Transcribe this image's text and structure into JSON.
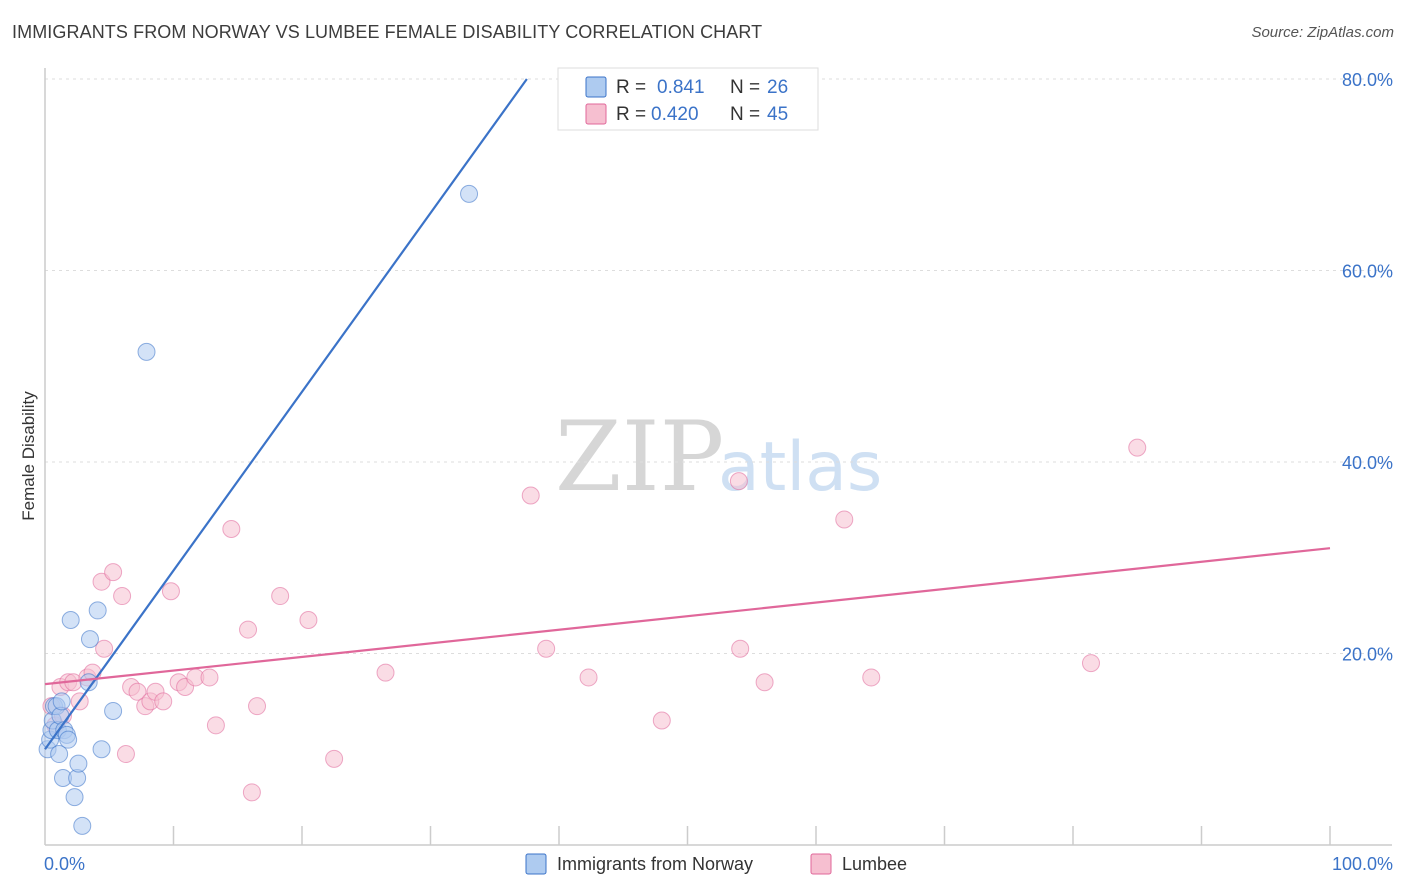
{
  "header": {
    "title": "IMMIGRANTS FROM NORWAY VS LUMBEE FEMALE DISABILITY CORRELATION CHART",
    "source": "Source: ZipAtlas.com"
  },
  "watermark": {
    "zip": "ZIP",
    "atlas": "atlas"
  },
  "colors": {
    "blue": "#3b73c8",
    "blue_fill": "#aecbf0",
    "pink": "#e0679a",
    "pink_fill": "#f6bfd0",
    "grid": "#dddddd",
    "axis": "#cccccc"
  },
  "legend": {
    "r_label": "R =",
    "n_label": "N =",
    "rows": [
      {
        "series": "Immigrants from Norway",
        "r": "0.841",
        "n": "26"
      },
      {
        "series": "Lumbee",
        "r": "0.420",
        "n": "45"
      }
    ]
  },
  "chart_data": {
    "type": "scatter",
    "title": "IMMIGRANTS FROM NORWAY VS LUMBEE FEMALE DISABILITY CORRELATION CHART",
    "xlabel": "",
    "ylabel": "Female Disability",
    "xlim": [
      0,
      100
    ],
    "ylim": [
      0,
      80
    ],
    "x_tick_labels": [
      "0.0%",
      "100.0%"
    ],
    "y_ticks": [
      20,
      40,
      60,
      80
    ],
    "y_tick_labels": [
      "20.0%",
      "40.0%",
      "60.0%",
      "80.0%"
    ],
    "series": [
      {
        "name": "Immigrants from Norway",
        "color": "#3b73c8",
        "trend": {
          "x": [
            0.0,
            37.5
          ],
          "y": [
            10.0,
            80.0
          ]
        },
        "points": [
          {
            "x": 0.2,
            "y": 10.0
          },
          {
            "x": 0.4,
            "y": 11.0
          },
          {
            "x": 0.5,
            "y": 12.0
          },
          {
            "x": 0.6,
            "y": 13.0
          },
          {
            "x": 0.7,
            "y": 14.5
          },
          {
            "x": 0.9,
            "y": 14.5
          },
          {
            "x": 1.0,
            "y": 12.0
          },
          {
            "x": 1.1,
            "y": 9.5
          },
          {
            "x": 1.2,
            "y": 13.5
          },
          {
            "x": 1.3,
            "y": 15.0
          },
          {
            "x": 1.4,
            "y": 7.0
          },
          {
            "x": 1.5,
            "y": 12.0
          },
          {
            "x": 1.7,
            "y": 11.5
          },
          {
            "x": 1.8,
            "y": 11.0
          },
          {
            "x": 2.0,
            "y": 23.5
          },
          {
            "x": 2.3,
            "y": 5.0
          },
          {
            "x": 2.5,
            "y": 7.0
          },
          {
            "x": 2.6,
            "y": 8.5
          },
          {
            "x": 2.9,
            "y": 2.0
          },
          {
            "x": 3.4,
            "y": 17.0
          },
          {
            "x": 3.5,
            "y": 21.5
          },
          {
            "x": 4.1,
            "y": 24.5
          },
          {
            "x": 4.4,
            "y": 10.0
          },
          {
            "x": 5.3,
            "y": 14.0
          },
          {
            "x": 7.9,
            "y": 51.5
          },
          {
            "x": 33.0,
            "y": 68.0
          }
        ]
      },
      {
        "name": "Lumbee",
        "color": "#e0679a",
        "trend": {
          "x": [
            0.0,
            100.0
          ],
          "y": [
            16.8,
            31.0
          ]
        },
        "points": [
          {
            "x": 0.5,
            "y": 14.5
          },
          {
            "x": 0.8,
            "y": 12.5
          },
          {
            "x": 1.2,
            "y": 16.5
          },
          {
            "x": 1.4,
            "y": 13.5
          },
          {
            "x": 1.8,
            "y": 17.0
          },
          {
            "x": 2.2,
            "y": 17.0
          },
          {
            "x": 2.7,
            "y": 15.0
          },
          {
            "x": 3.3,
            "y": 17.5
          },
          {
            "x": 3.7,
            "y": 18.0
          },
          {
            "x": 4.4,
            "y": 27.5
          },
          {
            "x": 4.6,
            "y": 20.5
          },
          {
            "x": 5.3,
            "y": 28.5
          },
          {
            "x": 6.0,
            "y": 26.0
          },
          {
            "x": 6.3,
            "y": 9.5
          },
          {
            "x": 6.7,
            "y": 16.5
          },
          {
            "x": 7.2,
            "y": 16.0
          },
          {
            "x": 7.8,
            "y": 14.5
          },
          {
            "x": 8.2,
            "y": 15.0
          },
          {
            "x": 8.6,
            "y": 16.0
          },
          {
            "x": 9.2,
            "y": 15.0
          },
          {
            "x": 9.8,
            "y": 26.5
          },
          {
            "x": 10.4,
            "y": 17.0
          },
          {
            "x": 10.9,
            "y": 16.5
          },
          {
            "x": 11.7,
            "y": 17.5
          },
          {
            "x": 12.8,
            "y": 17.5
          },
          {
            "x": 13.3,
            "y": 12.5
          },
          {
            "x": 14.5,
            "y": 33.0
          },
          {
            "x": 15.8,
            "y": 22.5
          },
          {
            "x": 16.1,
            "y": 5.5
          },
          {
            "x": 16.5,
            "y": 14.5
          },
          {
            "x": 18.3,
            "y": 26.0
          },
          {
            "x": 20.5,
            "y": 23.5
          },
          {
            "x": 22.5,
            "y": 9.0
          },
          {
            "x": 26.5,
            "y": 18.0
          },
          {
            "x": 37.8,
            "y": 36.5
          },
          {
            "x": 39.0,
            "y": 20.5
          },
          {
            "x": 42.3,
            "y": 17.5
          },
          {
            "x": 48.0,
            "y": 13.0
          },
          {
            "x": 54.0,
            "y": 38.0
          },
          {
            "x": 54.1,
            "y": 20.5
          },
          {
            "x": 56.0,
            "y": 17.0
          },
          {
            "x": 62.2,
            "y": 34.0
          },
          {
            "x": 64.3,
            "y": 17.5
          },
          {
            "x": 81.4,
            "y": 19.0
          },
          {
            "x": 85.0,
            "y": 41.5
          }
        ]
      }
    ]
  }
}
